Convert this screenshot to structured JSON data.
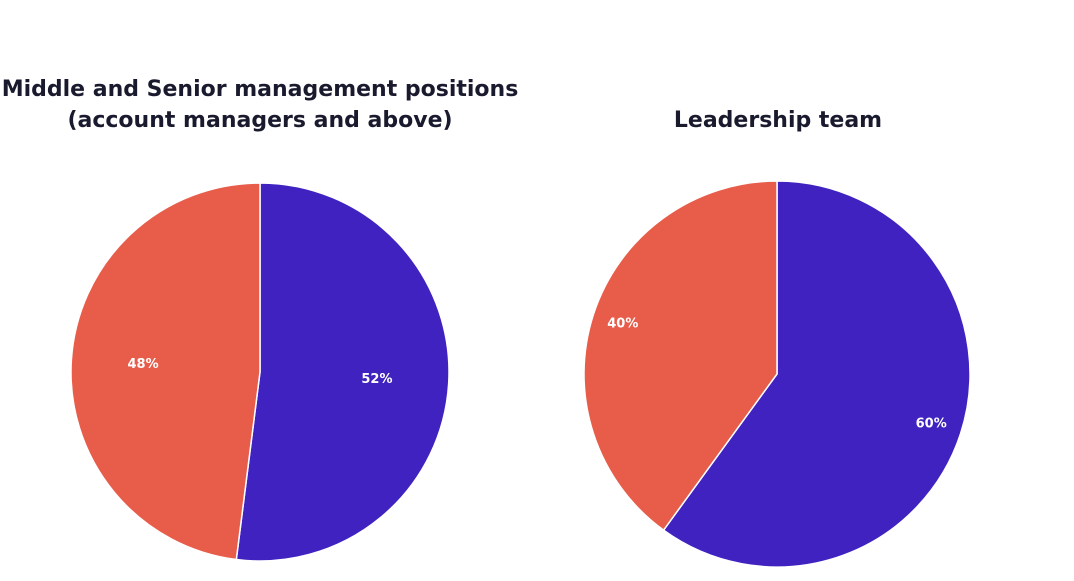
{
  "chart_data": [
    {
      "type": "pie",
      "title": [
        "Middle and Senior management positions",
        "(account managers and above)"
      ],
      "start_angle_deg": 0,
      "slices": [
        {
          "value": 52,
          "label": "52%",
          "color": "#3f22bf"
        },
        {
          "value": 48,
          "label": "48%",
          "color": "#e85c4a"
        }
      ]
    },
    {
      "type": "pie",
      "title": [
        "Leadership team"
      ],
      "start_angle_deg": 0,
      "slices": [
        {
          "value": 60,
          "label": "60%",
          "color": "#3f22bf"
        },
        {
          "value": 40,
          "label": "40%",
          "color": "#e85c4a"
        }
      ]
    }
  ]
}
